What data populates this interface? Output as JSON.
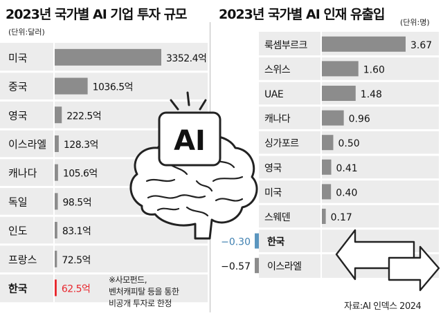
{
  "left_chart": {
    "title": "2023년 국가별 AI 기업 투자 규모",
    "unit": "(단위:달러)"
  },
  "right_chart": {
    "title": "2023년 국가별 AI 인재 유출입",
    "unit": "(단위:명)"
  },
  "illustration": {
    "chip_label": "AI",
    "icons": [
      "brain-icon",
      "exchange-arrows-icon"
    ]
  },
  "note": {
    "line1": "※사모펀드,",
    "line2": "벤처캐피탈 등을 통한",
    "line3": "비공개 투자로 한정"
  },
  "source": "자료:AI 인덱스 2024",
  "colors": {
    "bar": "#8c8c8c",
    "highlight_bar": "#e8262d",
    "negative_bar": "#5b96bf",
    "negative_label": "#3e7fb0",
    "row_shade": "#ececec"
  },
  "chart_data": [
    {
      "type": "bar",
      "orientation": "horizontal",
      "title": "2023년 국가별 AI 기업 투자 규모",
      "unit": "(단위:달러)",
      "categories": [
        "미국",
        "중국",
        "영국",
        "이스라엘",
        "캐나다",
        "독일",
        "인도",
        "프랑스",
        "한국"
      ],
      "values": [
        3352.4,
        1036.5,
        222.5,
        128.3,
        105.6,
        98.5,
        83.1,
        72.5,
        62.5
      ],
      "value_labels": [
        "3352.4억",
        "1036.5억",
        "222.5억",
        "128.3억",
        "105.6억",
        "98.5억",
        "83.1억",
        "72.5억",
        "62.5억"
      ],
      "highlight": "한국",
      "xlim": [
        0,
        3352.4
      ]
    },
    {
      "type": "bar",
      "orientation": "horizontal",
      "title": "2023년 국가별 AI 인재 유출입",
      "unit": "(단위:명)",
      "categories": [
        "룩셈부르크",
        "스위스",
        "UAE",
        "캐나다",
        "싱가포르",
        "영국",
        "미국",
        "스웨덴",
        "한국",
        "이스라엘"
      ],
      "values": [
        3.67,
        1.6,
        1.48,
        0.96,
        0.5,
        0.41,
        0.4,
        0.17,
        -0.3,
        -0.57
      ],
      "value_labels": [
        "3.67",
        "1.60",
        "1.48",
        "0.96",
        "0.50",
        "0.41",
        "0.40",
        "0.17",
        "-0.30",
        "-0.57"
      ],
      "highlight": "한국",
      "xlim": [
        -0.57,
        3.67
      ]
    }
  ]
}
